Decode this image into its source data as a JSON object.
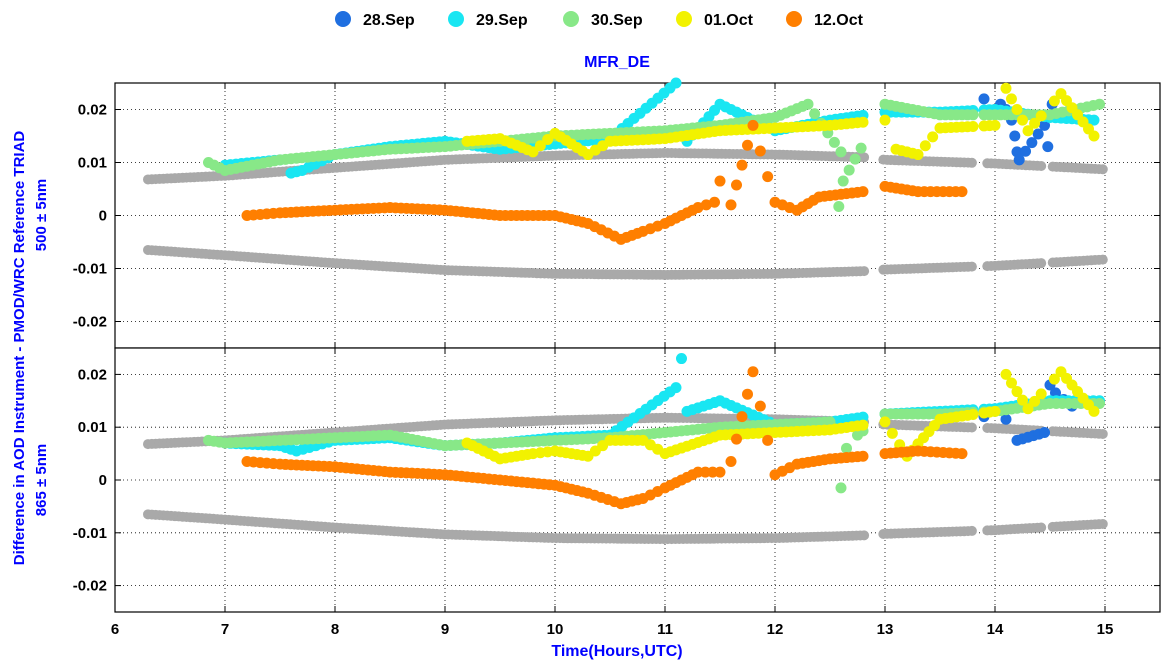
{
  "chart_data": {
    "type": "scatter",
    "title": "MFR_DE",
    "xlabel": "Time(Hours,UTC)",
    "ylabel": "Difference in AOD Instrument - PMOD/WRC Reference TRIAD",
    "xlim": [
      6,
      15.5
    ],
    "xticks": [
      "6",
      "7",
      "8",
      "9",
      "10",
      "11",
      "12",
      "13",
      "14",
      "15"
    ],
    "grid": true,
    "legend_position": "top",
    "legend": [
      {
        "name": "28.Sep",
        "color": "#1f6fe0"
      },
      {
        "name": "29.Sep",
        "color": "#19e6f2"
      },
      {
        "name": "30.Sep",
        "color": "#88e888"
      },
      {
        "name": "01.Oct",
        "color": "#f2f200"
      },
      {
        "name": "12.Oct",
        "color": "#ff7f00"
      }
    ],
    "panels": [
      {
        "wavelength_label": "500 ± 5nm",
        "ylim": [
          -0.025,
          0.025
        ],
        "yticks": [
          "0.02",
          "0.01",
          "0",
          "-0.01",
          "-0.02"
        ],
        "limits_color": "#a9a9a9",
        "upper_limit": [
          [
            6.3,
            0.0068
          ],
          [
            7.0,
            0.0075
          ],
          [
            8.0,
            0.009
          ],
          [
            9.0,
            0.0105
          ],
          [
            10.0,
            0.0113
          ],
          [
            11.0,
            0.0118
          ],
          [
            12.0,
            0.0115
          ],
          [
            12.8,
            0.011
          ],
          [
            13.0,
            0.0105
          ],
          [
            14.0,
            0.0098
          ],
          [
            15.0,
            0.0087
          ]
        ],
        "lower_limit": [
          [
            6.3,
            -0.0065
          ],
          [
            7.0,
            -0.0075
          ],
          [
            8.0,
            -0.009
          ],
          [
            9.0,
            -0.0103
          ],
          [
            10.0,
            -0.011
          ],
          [
            11.0,
            -0.0112
          ],
          [
            12.0,
            -0.011
          ],
          [
            12.8,
            -0.0105
          ],
          [
            13.0,
            -0.0102
          ],
          [
            14.0,
            -0.0095
          ],
          [
            15.0,
            -0.0083
          ]
        ],
        "series": [
          {
            "name": "28.Sep",
            "color": "#1f6fe0",
            "points": [
              [
                13.9,
                0.022
              ],
              [
                14.0,
                0.02
              ],
              [
                14.05,
                0.021
              ],
              [
                14.1,
                0.02
              ],
              [
                14.15,
                0.018
              ],
              [
                14.18,
                0.015
              ],
              [
                14.2,
                0.012
              ],
              [
                14.22,
                0.0105
              ],
              [
                14.45,
                0.017
              ],
              [
                14.48,
                0.013
              ],
              [
                14.52,
                0.021
              ],
              [
                14.6,
                0.019
              ]
            ]
          },
          {
            "name": "29.Sep",
            "color": "#19e6f2",
            "points": [
              [
                7.0,
                0.0095
              ],
              [
                7.5,
                0.0105
              ],
              [
                7.6,
                0.008
              ],
              [
                7.7,
                0.0085
              ],
              [
                8.0,
                0.0115
              ],
              [
                8.5,
                0.013
              ],
              [
                9.0,
                0.014
              ],
              [
                9.5,
                0.0125
              ],
              [
                10.0,
                0.0135
              ],
              [
                10.5,
                0.0145
              ],
              [
                11.1,
                0.025
              ],
              [
                11.2,
                0.014
              ],
              [
                11.5,
                0.021
              ],
              [
                12.0,
                0.016
              ],
              [
                12.5,
                0.018
              ],
              [
                13.0,
                0.0195
              ],
              [
                13.5,
                0.0195
              ],
              [
                14.0,
                0.02
              ],
              [
                14.5,
                0.0185
              ],
              [
                14.9,
                0.018
              ]
            ]
          },
          {
            "name": "30.Sep",
            "color": "#88e888",
            "points": [
              [
                6.85,
                0.01
              ],
              [
                7.0,
                0.0085
              ],
              [
                7.5,
                0.0105
              ],
              [
                8.0,
                0.0115
              ],
              [
                8.5,
                0.0125
              ],
              [
                9.0,
                0.013
              ],
              [
                9.5,
                0.014
              ],
              [
                10.0,
                0.015
              ],
              [
                10.5,
                0.0155
              ],
              [
                11.0,
                0.016
              ],
              [
                11.5,
                0.017
              ],
              [
                12.0,
                0.0185
              ],
              [
                12.3,
                0.021
              ],
              [
                12.6,
                0.012
              ],
              [
                12.58,
                0.0017
              ],
              [
                12.62,
                0.0065
              ],
              [
                13.0,
                0.021
              ],
              [
                13.5,
                0.019
              ],
              [
                14.0,
                0.019
              ],
              [
                14.5,
                0.019
              ],
              [
                14.95,
                0.021
              ]
            ]
          },
          {
            "name": "01.Oct",
            "color": "#f2f200",
            "points": [
              [
                9.2,
                0.014
              ],
              [
                9.5,
                0.0145
              ],
              [
                9.8,
                0.012
              ],
              [
                10.0,
                0.0155
              ],
              [
                10.3,
                0.0115
              ],
              [
                10.5,
                0.014
              ],
              [
                11.0,
                0.0145
              ],
              [
                11.5,
                0.016
              ],
              [
                12.0,
                0.0165
              ],
              [
                12.5,
                0.017
              ],
              [
                13.0,
                0.018
              ],
              [
                13.1,
                0.0125
              ],
              [
                13.3,
                0.0115
              ],
              [
                13.5,
                0.0165
              ],
              [
                14.0,
                0.017
              ],
              [
                14.1,
                0.024
              ],
              [
                14.3,
                0.016
              ],
              [
                14.6,
                0.023
              ],
              [
                14.9,
                0.015
              ]
            ]
          },
          {
            "name": "12.Oct",
            "color": "#ff7f00",
            "points": [
              [
                7.2,
                0.0
              ],
              [
                7.5,
                0.0005
              ],
              [
                8.0,
                0.001
              ],
              [
                8.5,
                0.0015
              ],
              [
                9.0,
                0.001
              ],
              [
                9.5,
                0.0
              ],
              [
                10.0,
                0.0
              ],
              [
                10.3,
                -0.0015
              ],
              [
                10.6,
                -0.0045
              ],
              [
                10.8,
                -0.003
              ],
              [
                11.0,
                -0.0015
              ],
              [
                11.3,
                0.0015
              ],
              [
                11.45,
                0.0025
              ],
              [
                11.5,
                0.0065
              ],
              [
                11.6,
                0.002
              ],
              [
                11.8,
                0.017
              ],
              [
                12.0,
                0.0025
              ],
              [
                12.2,
                0.001
              ],
              [
                12.4,
                0.0035
              ],
              [
                12.8,
                0.0045
              ],
              [
                13.0,
                0.0055
              ],
              [
                13.3,
                0.0045
              ],
              [
                13.7,
                0.0045
              ]
            ]
          }
        ]
      },
      {
        "wavelength_label": "865 ± 5nm",
        "ylim": [
          -0.025,
          0.025
        ],
        "yticks": [
          "0.02",
          "0.01",
          "0",
          "-0.01",
          "-0.02"
        ],
        "limits_color": "#a9a9a9",
        "upper_limit": [
          [
            6.3,
            0.0068
          ],
          [
            7.0,
            0.0075
          ],
          [
            8.0,
            0.009
          ],
          [
            9.0,
            0.0105
          ],
          [
            10.0,
            0.0113
          ],
          [
            11.0,
            0.0118
          ],
          [
            12.0,
            0.0115
          ],
          [
            12.8,
            0.011
          ],
          [
            13.0,
            0.0105
          ],
          [
            14.0,
            0.0098
          ],
          [
            15.0,
            0.0087
          ]
        ],
        "lower_limit": [
          [
            6.3,
            -0.0065
          ],
          [
            7.0,
            -0.0075
          ],
          [
            8.0,
            -0.009
          ],
          [
            9.0,
            -0.0103
          ],
          [
            10.0,
            -0.011
          ],
          [
            11.0,
            -0.0112
          ],
          [
            12.0,
            -0.011
          ],
          [
            12.8,
            -0.0105
          ],
          [
            13.0,
            -0.0102
          ],
          [
            14.0,
            -0.0095
          ],
          [
            15.0,
            -0.0083
          ]
        ],
        "series": [
          {
            "name": "28.Sep",
            "color": "#1f6fe0",
            "points": [
              [
                13.9,
                0.012
              ],
              [
                14.0,
                0.0135
              ],
              [
                14.1,
                0.0115
              ],
              [
                14.2,
                0.0075
              ],
              [
                14.45,
                0.009
              ],
              [
                14.5,
                0.018
              ],
              [
                14.55,
                0.0165
              ],
              [
                14.7,
                0.014
              ]
            ]
          },
          {
            "name": "29.Sep",
            "color": "#19e6f2",
            "points": [
              [
                7.0,
                0.007
              ],
              [
                7.5,
                0.0065
              ],
              [
                7.65,
                0.0055
              ],
              [
                8.0,
                0.0075
              ],
              [
                8.5,
                0.008
              ],
              [
                9.0,
                0.0065
              ],
              [
                9.5,
                0.007
              ],
              [
                10.0,
                0.008
              ],
              [
                10.5,
                0.0085
              ],
              [
                11.1,
                0.0175
              ],
              [
                11.15,
                0.023
              ],
              [
                11.2,
                0.013
              ],
              [
                11.5,
                0.015
              ],
              [
                12.0,
                0.0105
              ],
              [
                12.5,
                0.011
              ],
              [
                13.0,
                0.0125
              ],
              [
                13.5,
                0.013
              ],
              [
                14.0,
                0.0135
              ],
              [
                14.5,
                0.015
              ],
              [
                14.95,
                0.015
              ]
            ]
          },
          {
            "name": "30.Sep",
            "color": "#88e888",
            "points": [
              [
                6.85,
                0.0075
              ],
              [
                7.0,
                0.007
              ],
              [
                7.5,
                0.0075
              ],
              [
                8.0,
                0.008
              ],
              [
                8.5,
                0.0085
              ],
              [
                9.0,
                0.0065
              ],
              [
                9.5,
                0.007
              ],
              [
                10.0,
                0.0075
              ],
              [
                10.5,
                0.008
              ],
              [
                11.0,
                0.009
              ],
              [
                11.5,
                0.01
              ],
              [
                12.0,
                0.0105
              ],
              [
                12.5,
                0.011
              ],
              [
                12.6,
                -0.0015
              ],
              [
                12.65,
                0.006
              ],
              [
                12.75,
                0.0085
              ],
              [
                13.0,
                0.0125
              ],
              [
                13.5,
                0.0125
              ],
              [
                14.0,
                0.013
              ],
              [
                14.5,
                0.0145
              ],
              [
                14.95,
                0.0145
              ]
            ]
          },
          {
            "name": "01.Oct",
            "color": "#f2f200",
            "points": [
              [
                9.2,
                0.007
              ],
              [
                9.5,
                0.004
              ],
              [
                9.8,
                0.005
              ],
              [
                10.0,
                0.0055
              ],
              [
                10.3,
                0.0045
              ],
              [
                10.5,
                0.0075
              ],
              [
                10.8,
                0.0075
              ],
              [
                11.0,
                0.005
              ],
              [
                11.5,
                0.0085
              ],
              [
                12.0,
                0.009
              ],
              [
                12.5,
                0.0095
              ],
              [
                13.0,
                0.011
              ],
              [
                13.2,
                0.0045
              ],
              [
                13.5,
                0.0115
              ],
              [
                14.0,
                0.013
              ],
              [
                14.1,
                0.02
              ],
              [
                14.3,
                0.0135
              ],
              [
                14.6,
                0.0205
              ],
              [
                14.9,
                0.013
              ]
            ]
          },
          {
            "name": "12.Oct",
            "color": "#ff7f00",
            "points": [
              [
                7.2,
                0.0035
              ],
              [
                7.5,
                0.003
              ],
              [
                8.0,
                0.0025
              ],
              [
                8.5,
                0.0015
              ],
              [
                9.0,
                0.001
              ],
              [
                9.5,
                0.0
              ],
              [
                10.0,
                -0.001
              ],
              [
                10.3,
                -0.0025
              ],
              [
                10.6,
                -0.0045
              ],
              [
                10.8,
                -0.0035
              ],
              [
                11.0,
                -0.0015
              ],
              [
                11.3,
                0.0015
              ],
              [
                11.5,
                0.0015
              ],
              [
                11.6,
                0.0035
              ],
              [
                11.8,
                0.0205
              ],
              [
                12.0,
                0.001
              ],
              [
                12.2,
                0.003
              ],
              [
                12.5,
                0.004
              ],
              [
                12.8,
                0.0045
              ],
              [
                13.0,
                0.005
              ],
              [
                13.3,
                0.0055
              ],
              [
                13.7,
                0.005
              ]
            ]
          }
        ]
      }
    ]
  }
}
